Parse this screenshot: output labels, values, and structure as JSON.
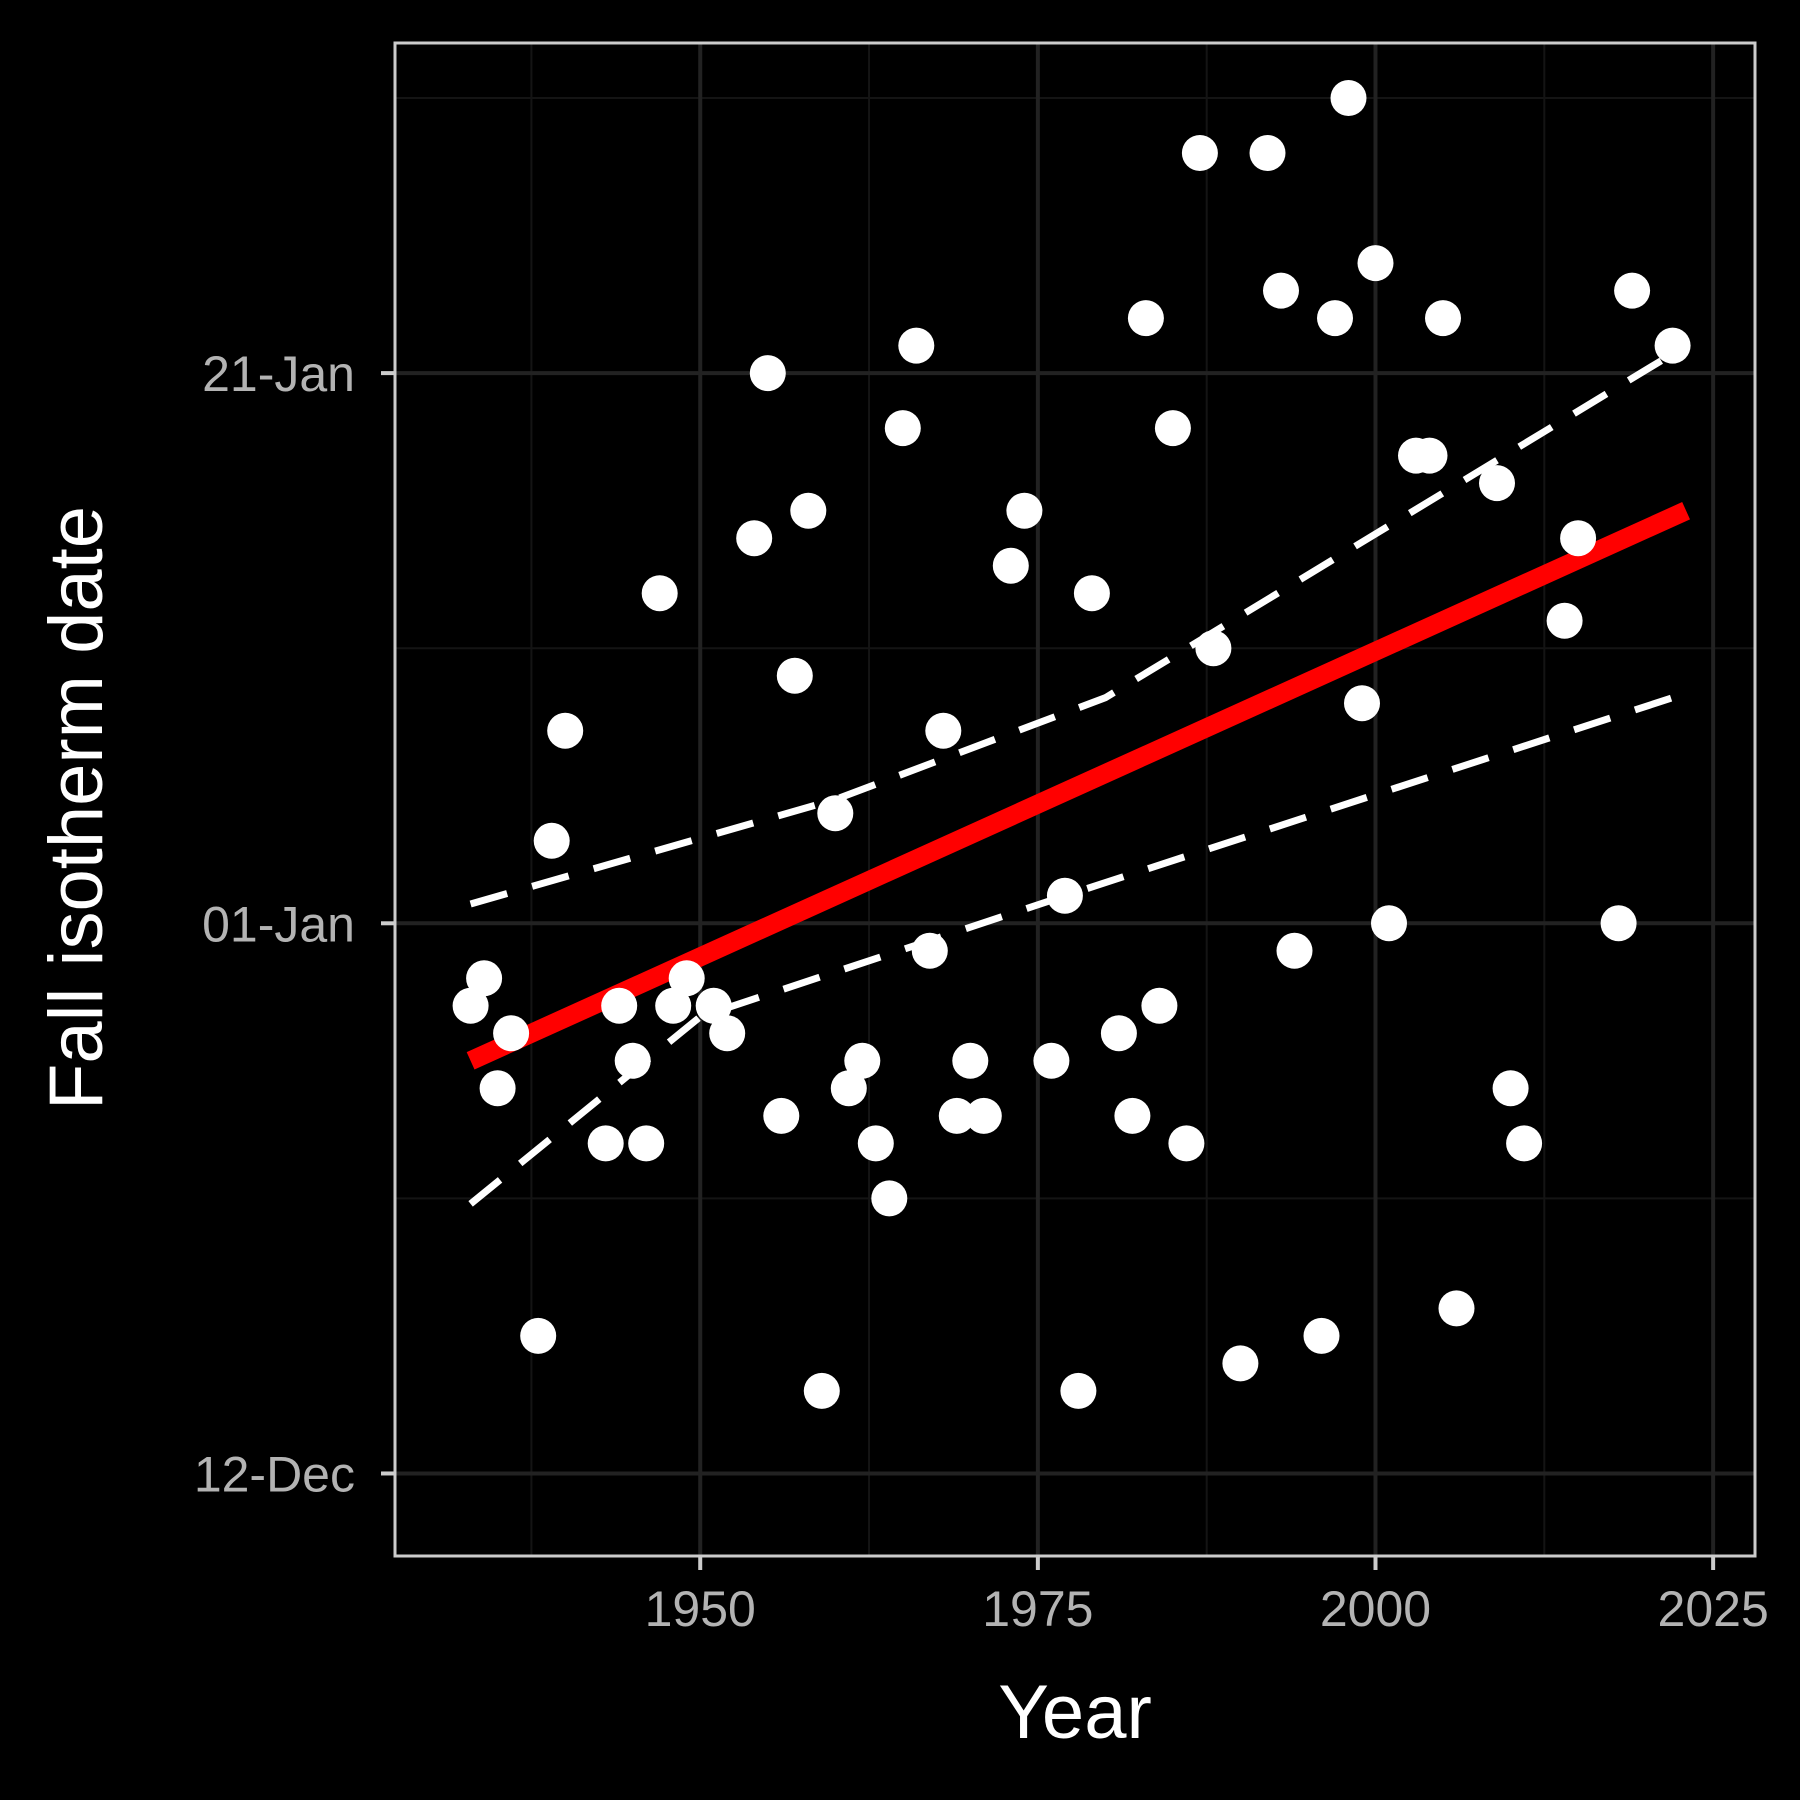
{
  "chart_data": {
    "type": "scatter",
    "title": "",
    "xlabel": "Year",
    "ylabel": "Fall isotherm date",
    "x_ticks": [
      "1950",
      "1975",
      "2000",
      "2025"
    ],
    "y_ticks": [
      "12-Dec",
      "01-Jan",
      "21-Jan"
    ],
    "xlim": [
      1927.4,
      2028.1
    ],
    "ylim": [
      "2024-12-09",
      "2025-02-02"
    ],
    "grid": true,
    "colors": {
      "background": "#000000",
      "panel_border": "#cccccc",
      "grid_major": "#222222",
      "grid_minor": "#141414",
      "points": "#ffffff",
      "trend_line": "#ff0000",
      "confidence_band": "#ffffff",
      "tick_label": "#b3b3b3",
      "axis_title": "#ffffff"
    },
    "series": [
      {
        "type": "scatter",
        "points": [
          {
            "x": 1933,
            "y": "2024-12-29"
          },
          {
            "x": 1934,
            "y": "2024-12-30"
          },
          {
            "x": 1935,
            "y": "2024-12-26"
          },
          {
            "x": 1936,
            "y": "2024-12-28"
          },
          {
            "x": 1938,
            "y": "2024-12-17"
          },
          {
            "x": 1939,
            "y": "2025-01-04"
          },
          {
            "x": 1940,
            "y": "2025-01-08"
          },
          {
            "x": 1943,
            "y": "2024-12-24"
          },
          {
            "x": 1944,
            "y": "2024-12-29"
          },
          {
            "x": 1945,
            "y": "2024-12-27"
          },
          {
            "x": 1946,
            "y": "2024-12-24"
          },
          {
            "x": 1947,
            "y": "2025-01-13"
          },
          {
            "x": 1948,
            "y": "2024-12-29"
          },
          {
            "x": 1949,
            "y": "2024-12-30"
          },
          {
            "x": 1951,
            "y": "2024-12-29"
          },
          {
            "x": 1952,
            "y": "2024-12-28"
          },
          {
            "x": 1954,
            "y": "2025-01-15"
          },
          {
            "x": 1955,
            "y": "2025-01-21"
          },
          {
            "x": 1956,
            "y": "2024-12-25"
          },
          {
            "x": 1957,
            "y": "2025-01-10"
          },
          {
            "x": 1958,
            "y": "2025-01-16"
          },
          {
            "x": 1959,
            "y": "2024-12-15"
          },
          {
            "x": 1960,
            "y": "2025-01-05"
          },
          {
            "x": 1961,
            "y": "2024-12-26"
          },
          {
            "x": 1962,
            "y": "2024-12-27"
          },
          {
            "x": 1963,
            "y": "2024-12-24"
          },
          {
            "x": 1964,
            "y": "2024-12-22"
          },
          {
            "x": 1965,
            "y": "2025-01-19"
          },
          {
            "x": 1966,
            "y": "2025-01-22"
          },
          {
            "x": 1967,
            "y": "2024-12-31"
          },
          {
            "x": 1968,
            "y": "2025-01-08"
          },
          {
            "x": 1969,
            "y": "2024-12-25"
          },
          {
            "x": 1970,
            "y": "2024-12-27"
          },
          {
            "x": 1971,
            "y": "2024-12-25"
          },
          {
            "x": 1973,
            "y": "2025-01-14"
          },
          {
            "x": 1974,
            "y": "2025-01-16"
          },
          {
            "x": 1976,
            "y": "2024-12-27"
          },
          {
            "x": 1977,
            "y": "2025-01-02"
          },
          {
            "x": 1978,
            "y": "2024-12-15"
          },
          {
            "x": 1979,
            "y": "2025-01-13"
          },
          {
            "x": 1981,
            "y": "2024-12-28"
          },
          {
            "x": 1982,
            "y": "2024-12-25"
          },
          {
            "x": 1983,
            "y": "2025-01-23"
          },
          {
            "x": 1984,
            "y": "2024-12-29"
          },
          {
            "x": 1985,
            "y": "2025-01-19"
          },
          {
            "x": 1986,
            "y": "2024-12-24"
          },
          {
            "x": 1987,
            "y": "2025-01-29"
          },
          {
            "x": 1988,
            "y": "2025-01-11"
          },
          {
            "x": 1990,
            "y": "2024-12-16"
          },
          {
            "x": 1992,
            "y": "2025-01-29"
          },
          {
            "x": 1993,
            "y": "2025-01-24"
          },
          {
            "x": 1994,
            "y": "2024-12-31"
          },
          {
            "x": 1996,
            "y": "2024-12-17"
          },
          {
            "x": 1997,
            "y": "2025-01-23"
          },
          {
            "x": 1998,
            "y": "2025-01-31"
          },
          {
            "x": 1999,
            "y": "2025-01-09"
          },
          {
            "x": 2000,
            "y": "2025-01-25"
          },
          {
            "x": 2001,
            "y": "2025-01-01"
          },
          {
            "x": 2003,
            "y": "2025-01-18"
          },
          {
            "x": 2004,
            "y": "2025-01-18"
          },
          {
            "x": 2005,
            "y": "2025-01-23"
          },
          {
            "x": 2006,
            "y": "2024-12-18"
          },
          {
            "x": 2009,
            "y": "2025-01-17"
          },
          {
            "x": 2010,
            "y": "2024-12-26"
          },
          {
            "x": 2011,
            "y": "2024-12-24"
          },
          {
            "x": 2014,
            "y": "2025-01-12"
          },
          {
            "x": 2015,
            "y": "2025-01-15"
          },
          {
            "x": 2018,
            "y": "2025-01-01"
          },
          {
            "x": 2019,
            "y": "2025-01-24"
          },
          {
            "x": 2022,
            "y": "2025-01-22"
          }
        ]
      },
      {
        "type": "line",
        "role": "trend",
        "points": [
          {
            "x": 1933,
            "y": "2024-12-27.0"
          },
          {
            "x": 2023,
            "y": "2025-01-16.0"
          }
        ]
      },
      {
        "type": "line",
        "role": "confidence-upper",
        "points": [
          {
            "x": 1933,
            "y": "2025-01-01.7"
          },
          {
            "x": 1960,
            "y": "2025-01-05.5"
          },
          {
            "x": 1980,
            "y": "2025-01-09.2"
          },
          {
            "x": 2023,
            "y": "2025-01-22.0"
          }
        ]
      },
      {
        "type": "line",
        "role": "confidence-lower",
        "points": [
          {
            "x": 1933,
            "y": "2024-12-21.8"
          },
          {
            "x": 1950,
            "y": "2024-12-28.6"
          },
          {
            "x": 1977,
            "y": "2025-01-02.0"
          },
          {
            "x": 2022,
            "y": "2025-01-09.2"
          }
        ]
      }
    ]
  }
}
